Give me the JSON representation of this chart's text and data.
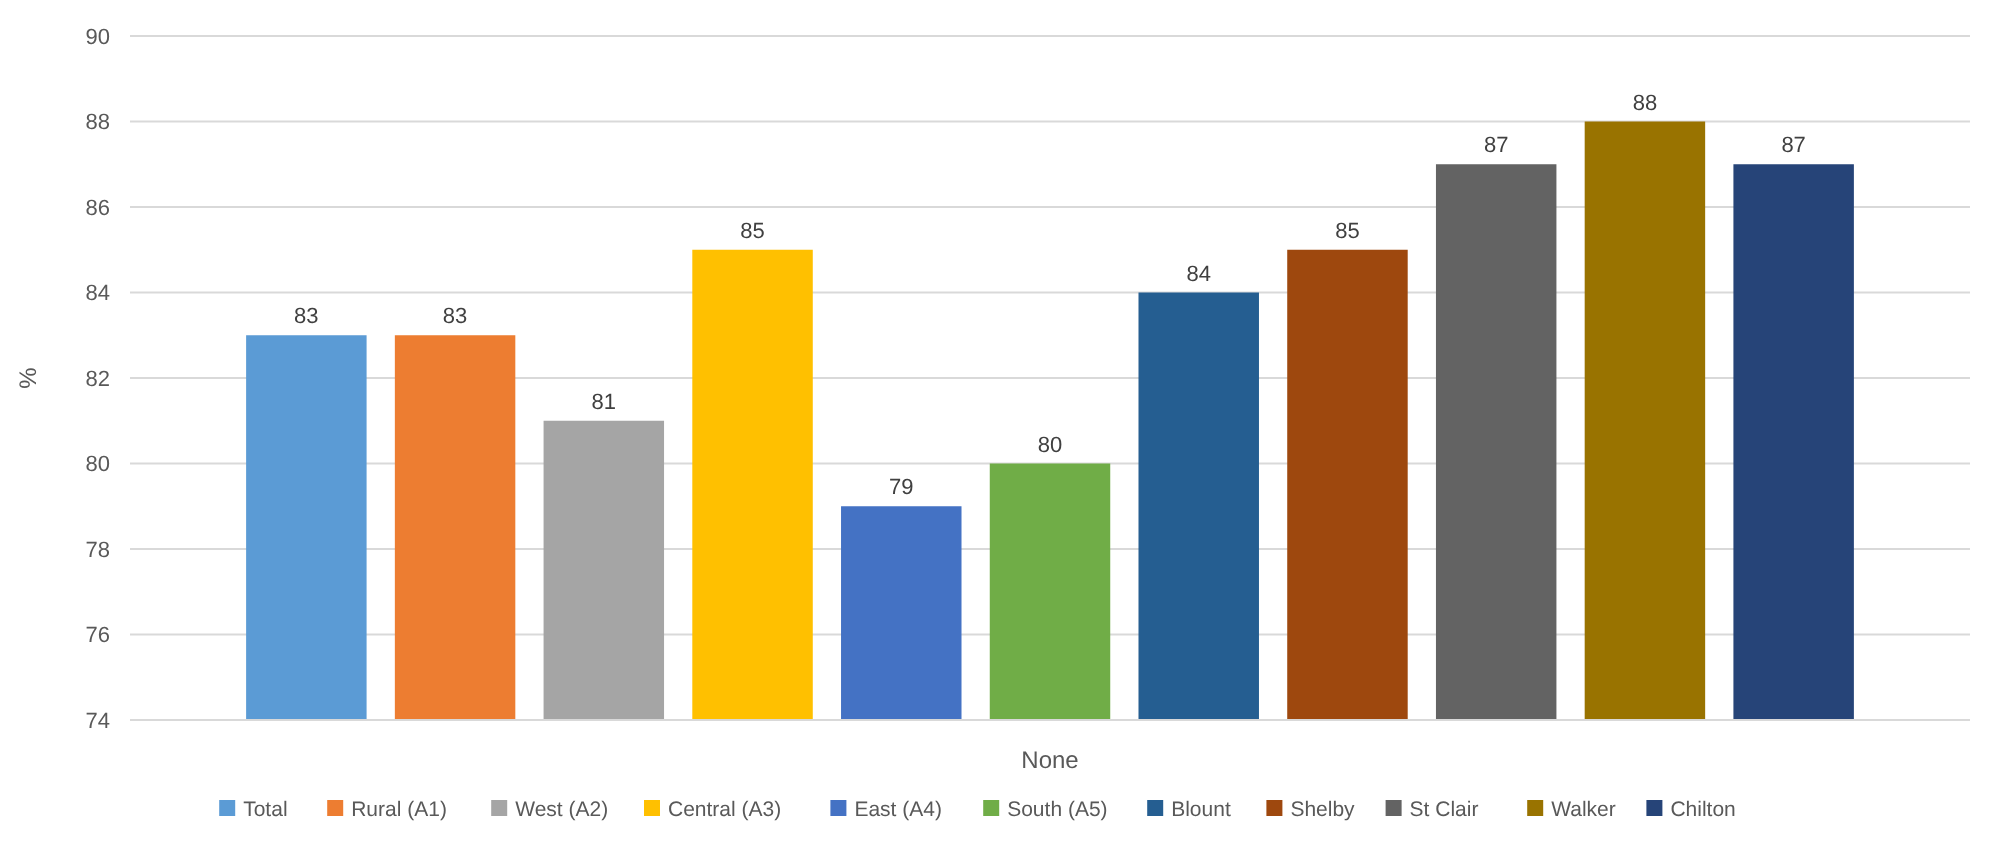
{
  "chart_data": {
    "type": "bar",
    "categories": [
      "None"
    ],
    "ylabel": "%",
    "ylim": [
      74,
      90
    ],
    "yticks": [
      74,
      76,
      78,
      80,
      82,
      84,
      86,
      88,
      90
    ],
    "grid": "y",
    "legend": "bottom",
    "data_labels": true,
    "series": [
      {
        "name": "Total",
        "color": "#5b9bd5",
        "values": [
          83
        ]
      },
      {
        "name": "Rural (A1)",
        "color": "#ed7d31",
        "values": [
          83
        ]
      },
      {
        "name": "West (A2)",
        "color": "#a5a5a5",
        "values": [
          81
        ]
      },
      {
        "name": "Central (A3)",
        "color": "#ffc000",
        "values": [
          85
        ]
      },
      {
        "name": "East (A4)",
        "color": "#4472c4",
        "values": [
          79
        ]
      },
      {
        "name": "South (A5)",
        "color": "#70ad47",
        "values": [
          80
        ]
      },
      {
        "name": "Blount",
        "color": "#255e91",
        "values": [
          84
        ]
      },
      {
        "name": "Shelby",
        "color": "#9e480e",
        "values": [
          85
        ]
      },
      {
        "name": "St Clair",
        "color": "#636363",
        "values": [
          87
        ]
      },
      {
        "name": "Walker",
        "color": "#997300",
        "values": [
          88
        ]
      },
      {
        "name": "Chilton",
        "color": "#264478",
        "values": [
          87
        ]
      }
    ]
  }
}
